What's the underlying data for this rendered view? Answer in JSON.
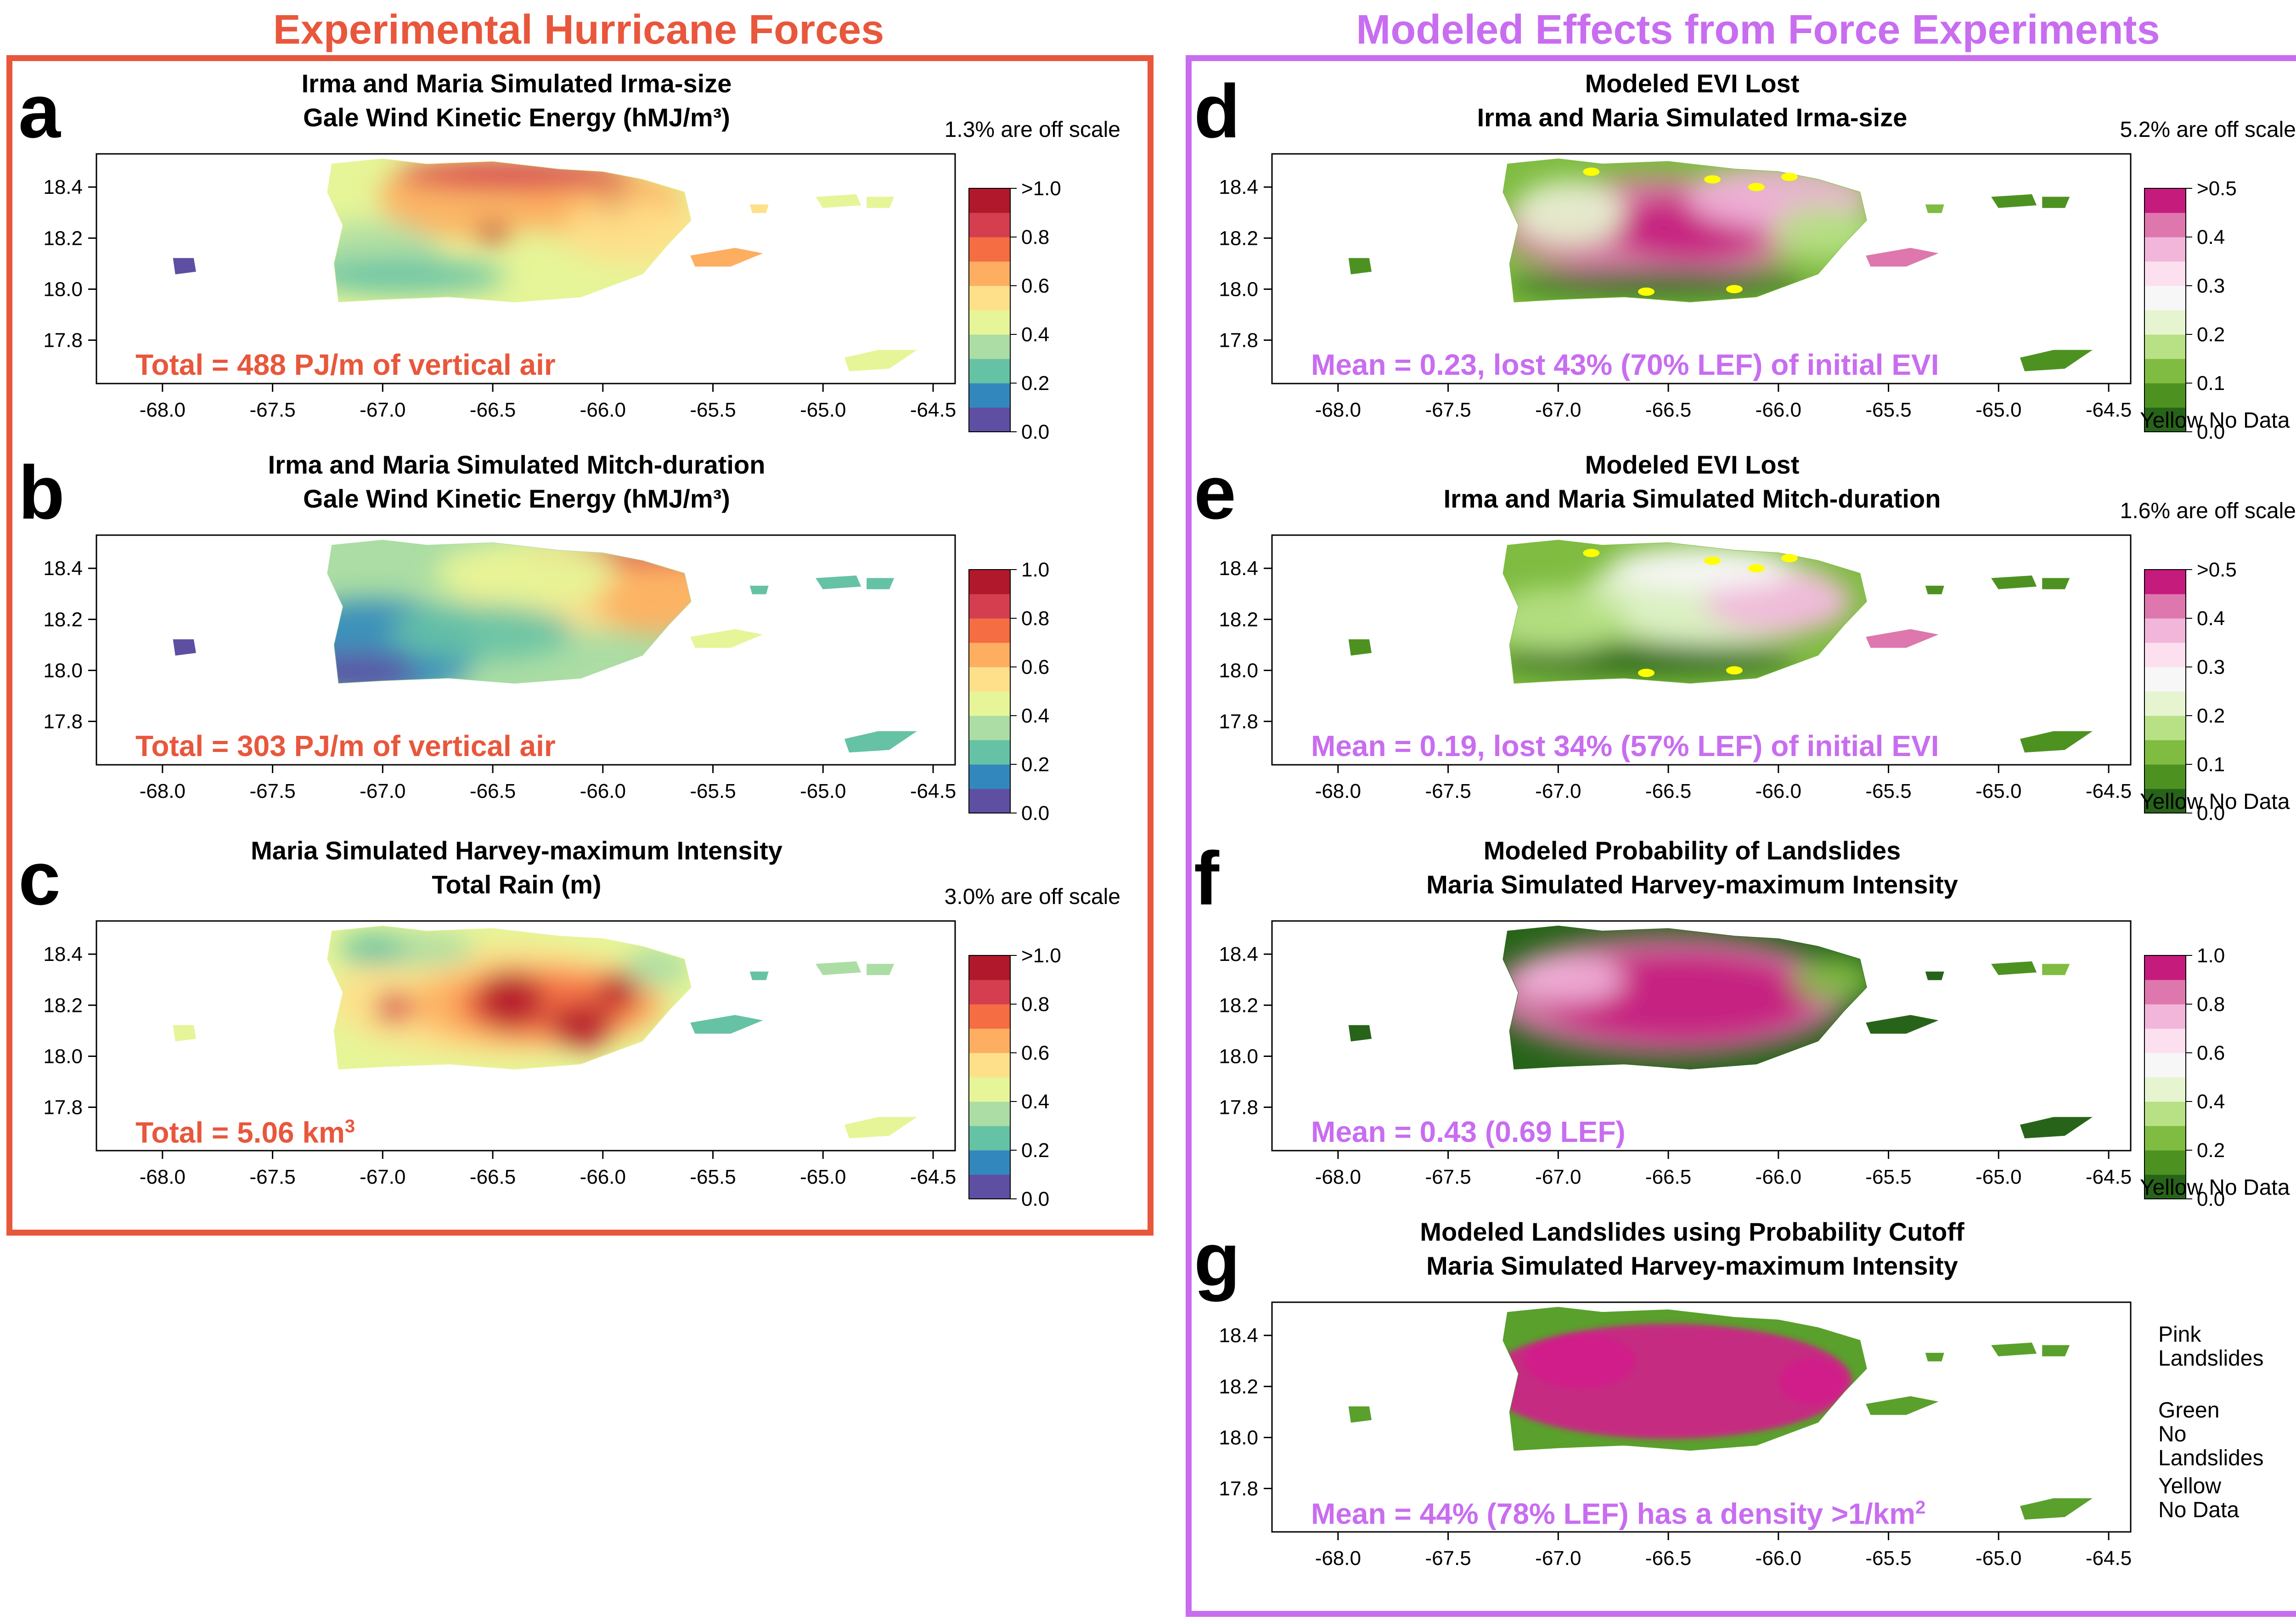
{
  "sections": {
    "left_title": "Experimental Hurricane Forces",
    "right_title": "Modeled Effects from Force Experiments"
  },
  "colors": {
    "left_accent": "#e8573c",
    "right_accent": "#c86df0",
    "spectral": [
      "#5e4fa2",
      "#3288bd",
      "#66c2a5",
      "#abdda4",
      "#e6f598",
      "#fee08b",
      "#fdae61",
      "#f46d43",
      "#d53e4f",
      "#b2182b"
    ],
    "piyg": [
      "#276419",
      "#4d9221",
      "#7fbc41",
      "#b8e186",
      "#e6f5d0",
      "#f7f7f7",
      "#fde0ef",
      "#f1b6da",
      "#de77ae",
      "#c51b7d"
    ],
    "landslide_pink": "#d01c8b",
    "landslide_green": "#5aa02c",
    "no_data_yellow": "#ffff00"
  },
  "x_ticks": [
    "-68.0",
    "-67.5",
    "-67.0",
    "-66.5",
    "-66.0",
    "-65.5",
    "-65.0",
    "-64.5"
  ],
  "y_ticks": [
    "18.4",
    "18.2",
    "18.0",
    "17.8"
  ],
  "panels": {
    "a": {
      "letter": "a",
      "title1": "Irma and Maria Simulated Irma-size",
      "title2": "Gale Wind Kinetic Energy (hMJ/m³)",
      "offscale": "1.3% are off scale",
      "annotation": "Total = 488 PJ/m of vertical air",
      "legend_ticks": [
        ">1.0",
        "0.8",
        "0.6",
        "0.4",
        "0.2",
        "0.0"
      ]
    },
    "b": {
      "letter": "b",
      "title1": "Irma and Maria Simulated Mitch-duration",
      "title2": "Gale Wind Kinetic Energy (hMJ/m³)",
      "offscale": "",
      "annotation": "Total = 303 PJ/m of vertical air",
      "legend_ticks": [
        "1.0",
        "0.8",
        "0.6",
        "0.4",
        "0.2",
        "0.0"
      ]
    },
    "c": {
      "letter": "c",
      "title1": "Maria Simulated Harvey-maximum Intensity",
      "title2": "Total Rain (m)",
      "offscale": "3.0% are off scale",
      "annotation": "Total = 5.06 km",
      "annotation_sup": "3",
      "legend_ticks": [
        ">1.0",
        "0.8",
        "0.6",
        "0.4",
        "0.2",
        "0.0"
      ]
    },
    "d": {
      "letter": "d",
      "title1": "Modeled EVI Lost",
      "title2": "Irma and Maria Simulated Irma-size",
      "offscale": "5.2% are off scale",
      "annotation": "Mean = 0.23, lost 43% (70% LEF) of initial EVI",
      "legend_ticks": [
        ">0.5",
        "0.4",
        "0.3",
        "0.2",
        "0.1",
        "0.0"
      ],
      "nodata": "Yellow No Data"
    },
    "e": {
      "letter": "e",
      "title1": "Modeled EVI Lost",
      "title2": "Irma and Maria Simulated Mitch-duration",
      "offscale": "1.6% are off scale",
      "annotation": "Mean = 0.19, lost 34% (57% LEF) of initial EVI",
      "legend_ticks": [
        ">0.5",
        "0.4",
        "0.3",
        "0.2",
        "0.1",
        "0.0"
      ],
      "nodata": "Yellow No Data"
    },
    "f": {
      "letter": "f",
      "title1": "Modeled Probability of Landslides",
      "title2": "Maria Simulated Harvey-maximum Intensity",
      "offscale": "",
      "annotation": "Mean = 0.43 (0.69 LEF)",
      "legend_ticks": [
        "1.0",
        "0.8",
        "0.6",
        "0.4",
        "0.2",
        "0.0"
      ],
      "nodata": "Yellow No Data"
    },
    "g": {
      "letter": "g",
      "title1": "Modeled Landslides using Probability Cutoff",
      "title2": "Maria Simulated Harvey-maximum Intensity",
      "offscale": "",
      "annotation": "Mean = 44% (78% LEF) has a density >1/km",
      "annotation_sup": "2",
      "legend": {
        "pink_1": "Pink",
        "pink_2": "Landslides",
        "green_1": "Green",
        "green_2": "No Landslides",
        "yellow_1": "Yellow",
        "yellow_2": "No Data"
      }
    }
  }
}
